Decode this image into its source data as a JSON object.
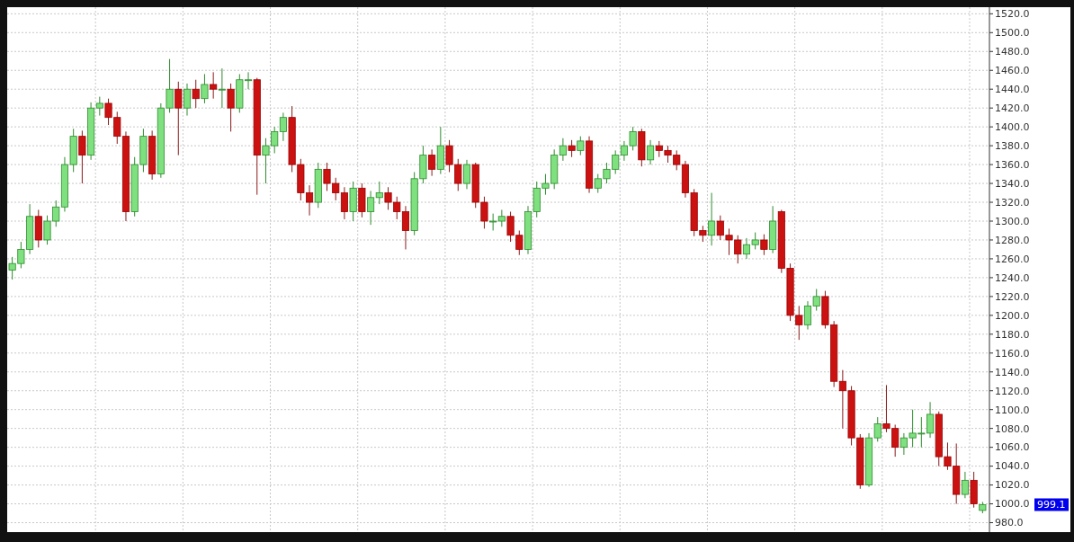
{
  "chart_data": {
    "type": "candlestick",
    "categories": [
      null,
      null,
      null,
      null,
      null,
      null,
      null,
      null,
      null,
      null,
      null,
      null,
      null,
      null,
      null,
      null,
      null,
      null,
      null,
      null,
      null,
      null,
      null,
      null,
      null,
      null,
      null,
      null,
      null,
      null,
      null,
      null,
      null,
      null,
      null,
      null,
      null,
      null,
      null,
      null,
      null,
      null,
      null,
      null,
      null,
      null,
      null,
      null,
      null,
      null,
      null,
      null,
      null,
      null,
      null,
      null,
      null,
      null,
      null,
      null,
      null,
      null,
      null,
      null,
      null,
      null,
      null,
      null,
      null,
      null,
      null,
      null,
      null,
      null,
      null,
      null,
      null,
      null,
      null,
      null,
      null,
      null,
      null,
      null,
      null,
      null,
      null,
      null,
      null,
      null,
      null,
      null,
      null,
      null,
      null,
      null,
      null,
      null,
      null,
      null,
      null,
      null,
      null,
      null,
      null,
      null,
      null,
      null,
      null,
      null,
      null,
      null
    ],
    "ohlc": [
      [
        1248,
        1262,
        1238,
        1255
      ],
      [
        1255,
        1278,
        1250,
        1270
      ],
      [
        1270,
        1318,
        1265,
        1305
      ],
      [
        1305,
        1312,
        1272,
        1280
      ],
      [
        1280,
        1306,
        1275,
        1300
      ],
      [
        1300,
        1322,
        1294,
        1315
      ],
      [
        1315,
        1368,
        1310,
        1360
      ],
      [
        1360,
        1398,
        1352,
        1390
      ],
      [
        1390,
        1396,
        1340,
        1370
      ],
      [
        1370,
        1426,
        1365,
        1420
      ],
      [
        1420,
        1432,
        1412,
        1425
      ],
      [
        1425,
        1430,
        1402,
        1410
      ],
      [
        1410,
        1416,
        1382,
        1390
      ],
      [
        1390,
        1395,
        1300,
        1310
      ],
      [
        1310,
        1368,
        1305,
        1360
      ],
      [
        1360,
        1398,
        1352,
        1390
      ],
      [
        1390,
        1396,
        1344,
        1350
      ],
      [
        1350,
        1425,
        1346,
        1420
      ],
      [
        1420,
        1472,
        1415,
        1440
      ],
      [
        1440,
        1448,
        1370,
        1420
      ],
      [
        1420,
        1446,
        1412,
        1440
      ],
      [
        1440,
        1450,
        1420,
        1430
      ],
      [
        1430,
        1456,
        1425,
        1445
      ],
      [
        1445,
        1458,
        1430,
        1440
      ],
      [
        1440,
        1462,
        1420,
        1440
      ],
      [
        1440,
        1446,
        1395,
        1420
      ],
      [
        1420,
        1456,
        1415,
        1450
      ],
      [
        1450,
        1458,
        1440,
        1450
      ],
      [
        1450,
        1452,
        1328,
        1370
      ],
      [
        1370,
        1388,
        1340,
        1380
      ],
      [
        1380,
        1400,
        1372,
        1395
      ],
      [
        1395,
        1415,
        1385,
        1410
      ],
      [
        1410,
        1422,
        1352,
        1360
      ],
      [
        1360,
        1366,
        1322,
        1330
      ],
      [
        1330,
        1338,
        1306,
        1320
      ],
      [
        1320,
        1362,
        1314,
        1355
      ],
      [
        1355,
        1362,
        1332,
        1340
      ],
      [
        1340,
        1346,
        1322,
        1330
      ],
      [
        1330,
        1336,
        1302,
        1310
      ],
      [
        1310,
        1342,
        1300,
        1335
      ],
      [
        1335,
        1340,
        1304,
        1310
      ],
      [
        1310,
        1332,
        1296,
        1325
      ],
      [
        1325,
        1342,
        1318,
        1330
      ],
      [
        1330,
        1336,
        1312,
        1320
      ],
      [
        1320,
        1326,
        1302,
        1310
      ],
      [
        1310,
        1316,
        1270,
        1290
      ],
      [
        1290,
        1352,
        1285,
        1345
      ],
      [
        1345,
        1380,
        1340,
        1370
      ],
      [
        1370,
        1376,
        1348,
        1355
      ],
      [
        1355,
        1400,
        1350,
        1380
      ],
      [
        1380,
        1386,
        1352,
        1360
      ],
      [
        1360,
        1366,
        1332,
        1340
      ],
      [
        1340,
        1365,
        1334,
        1360
      ],
      [
        1360,
        1362,
        1314,
        1320
      ],
      [
        1320,
        1326,
        1292,
        1300
      ],
      [
        1300,
        1308,
        1290,
        1300
      ],
      [
        1300,
        1312,
        1294,
        1305
      ],
      [
        1305,
        1310,
        1278,
        1285
      ],
      [
        1285,
        1290,
        1264,
        1270
      ],
      [
        1270,
        1316,
        1265,
        1310
      ],
      [
        1310,
        1342,
        1304,
        1335
      ],
      [
        1335,
        1350,
        1328,
        1340
      ],
      [
        1340,
        1376,
        1334,
        1370
      ],
      [
        1370,
        1388,
        1364,
        1380
      ],
      [
        1380,
        1386,
        1368,
        1375
      ],
      [
        1375,
        1390,
        1370,
        1385
      ],
      [
        1385,
        1390,
        1330,
        1335
      ],
      [
        1335,
        1350,
        1330,
        1345
      ],
      [
        1345,
        1362,
        1340,
        1355
      ],
      [
        1355,
        1375,
        1350,
        1370
      ],
      [
        1370,
        1385,
        1364,
        1380
      ],
      [
        1380,
        1400,
        1375,
        1395
      ],
      [
        1395,
        1398,
        1358,
        1365
      ],
      [
        1365,
        1386,
        1360,
        1380
      ],
      [
        1380,
        1385,
        1368,
        1375
      ],
      [
        1375,
        1380,
        1362,
        1370
      ],
      [
        1370,
        1375,
        1354,
        1360
      ],
      [
        1360,
        1364,
        1325,
        1330
      ],
      [
        1330,
        1334,
        1284,
        1290
      ],
      [
        1290,
        1295,
        1278,
        1285
      ],
      [
        1285,
        1330,
        1274,
        1300
      ],
      [
        1300,
        1306,
        1280,
        1285
      ],
      [
        1285,
        1292,
        1264,
        1280
      ],
      [
        1280,
        1285,
        1255,
        1265
      ],
      [
        1265,
        1282,
        1260,
        1275
      ],
      [
        1275,
        1288,
        1270,
        1280
      ],
      [
        1280,
        1286,
        1264,
        1270
      ],
      [
        1270,
        1316,
        1266,
        1300
      ],
      [
        1310,
        1312,
        1245,
        1250
      ],
      [
        1250,
        1255,
        1194,
        1200
      ],
      [
        1200,
        1210,
        1174,
        1190
      ],
      [
        1190,
        1215,
        1185,
        1210
      ],
      [
        1210,
        1228,
        1205,
        1220
      ],
      [
        1220,
        1226,
        1186,
        1190
      ],
      [
        1190,
        1194,
        1124,
        1130
      ],
      [
        1130,
        1142,
        1080,
        1120
      ],
      [
        1120,
        1125,
        1062,
        1070
      ],
      [
        1070,
        1074,
        1016,
        1020
      ],
      [
        1020,
        1075,
        1018,
        1070
      ],
      [
        1070,
        1092,
        1066,
        1085
      ],
      [
        1085,
        1126,
        1076,
        1080
      ],
      [
        1080,
        1084,
        1050,
        1060
      ],
      [
        1060,
        1075,
        1052,
        1070
      ],
      [
        1070,
        1100,
        1060,
        1075
      ],
      [
        1075,
        1092,
        1060,
        1075
      ],
      [
        1075,
        1108,
        1070,
        1095
      ],
      [
        1095,
        1098,
        1040,
        1050
      ],
      [
        1050,
        1065,
        1036,
        1040
      ],
      [
        1040,
        1064,
        1000,
        1010
      ],
      [
        1010,
        1034,
        1006,
        1025
      ],
      [
        1025,
        1034,
        996,
        1000
      ],
      [
        993,
        1002,
        990,
        999.1
      ]
    ],
    "ylim": [
      970,
      1527
    ],
    "yticks": [
      {
        "value": 980,
        "label": "980.0"
      },
      {
        "value": 1000,
        "label": "1000.0"
      },
      {
        "value": 1020,
        "label": "1020.0"
      },
      {
        "value": 1040,
        "label": "1040.0"
      },
      {
        "value": 1060,
        "label": "1060.0"
      },
      {
        "value": 1080,
        "label": "1080.0"
      },
      {
        "value": 1100,
        "label": "1100.0"
      },
      {
        "value": 1120,
        "label": "1120.0"
      },
      {
        "value": 1140,
        "label": "1140.0"
      },
      {
        "value": 1160,
        "label": "1160.0"
      },
      {
        "value": 1180,
        "label": "1180.0"
      },
      {
        "value": 1200,
        "label": "1200.0"
      },
      {
        "value": 1220,
        "label": "1220.0"
      },
      {
        "value": 1240,
        "label": "1240.0"
      },
      {
        "value": 1260,
        "label": "1260.0"
      },
      {
        "value": 1280,
        "label": "1280.0"
      },
      {
        "value": 1300,
        "label": "1300.0"
      },
      {
        "value": 1320,
        "label": "1320.0"
      },
      {
        "value": 1340,
        "label": "1340.0"
      },
      {
        "value": 1360,
        "label": "1360.0"
      },
      {
        "value": 1380,
        "label": "1380.0"
      },
      {
        "value": 1400,
        "label": "1400.0"
      },
      {
        "value": 1420,
        "label": "1420.0"
      },
      {
        "value": 1440,
        "label": "1440.0"
      },
      {
        "value": 1460,
        "label": "1460.0"
      },
      {
        "value": 1480,
        "label": "1480.0"
      },
      {
        "value": 1500,
        "label": "1500.0"
      },
      {
        "value": 1520,
        "label": "1520.0"
      }
    ],
    "grid": true,
    "annotations": [
      "999.1"
    ]
  }
}
